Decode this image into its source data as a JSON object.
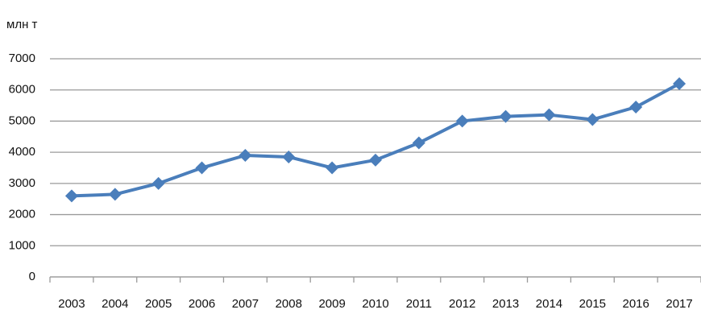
{
  "chart_data": {
    "type": "line",
    "y_label": "млн т",
    "categories": [
      "2003",
      "2004",
      "2005",
      "2006",
      "2007",
      "2008",
      "2009",
      "2010",
      "2011",
      "2012",
      "2013",
      "2014",
      "2015",
      "2016",
      "2017"
    ],
    "series": [
      {
        "name": "млн т",
        "color": "#4a7ebb",
        "values": [
          2600,
          2650,
          3000,
          3500,
          3900,
          3850,
          3500,
          3750,
          4300,
          5000,
          5150,
          5200,
          5050,
          5450,
          6200
        ]
      }
    ],
    "ylim": [
      0,
      7000
    ],
    "yticks": [
      0,
      1000,
      2000,
      3000,
      4000,
      5000,
      6000,
      7000
    ],
    "grid": true
  }
}
